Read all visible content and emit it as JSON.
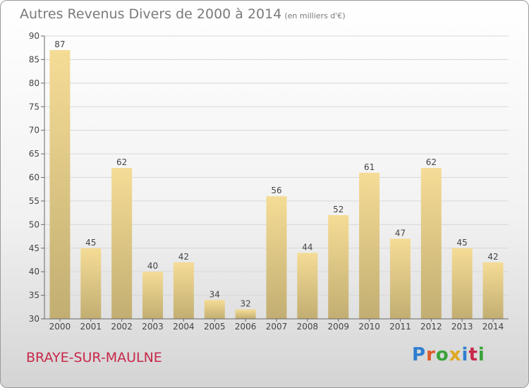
{
  "title": "Autres Revenus Divers de 2000 à 2014",
  "unit": "(en milliers d'€)",
  "commune": "BRAYE-SUR-MAULNE",
  "brand": "Proxiti",
  "colors": {
    "bar_top": "#f5dc96",
    "bar_bottom": "#c2ae72",
    "grid": "#d8d8d8",
    "commune": "#c8284a"
  },
  "chart_data": {
    "type": "bar",
    "title": "Autres Revenus Divers de 2000 à 2014",
    "categories": [
      "2000",
      "2001",
      "2002",
      "2003",
      "2004",
      "2005",
      "2006",
      "2007",
      "2008",
      "2009",
      "2010",
      "2011",
      "2012",
      "2013",
      "2014"
    ],
    "values": [
      87,
      45,
      62,
      40,
      42,
      34,
      32,
      56,
      44,
      52,
      61,
      47,
      62,
      45,
      42
    ],
    "ylim": [
      30,
      90
    ],
    "yticks": [
      30,
      35,
      40,
      45,
      50,
      55,
      60,
      65,
      70,
      75,
      80,
      85,
      90
    ],
    "grid": true,
    "xlabel": "",
    "ylabel": ""
  }
}
